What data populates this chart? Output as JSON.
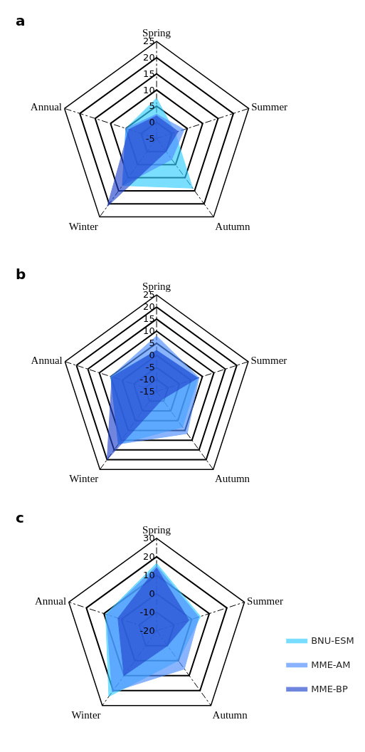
{
  "chart_data": [
    {
      "type": "radar",
      "title": "a",
      "categories": [
        "Spring",
        "Summer",
        "Autumn",
        "Winter",
        "Annual"
      ],
      "ylim": [
        -5,
        25
      ],
      "yticks": [
        -5,
        0,
        5,
        10,
        15,
        20,
        25
      ],
      "legend": false,
      "series": [
        {
          "color": "#33ccff",
          "values": [
            7.5,
            1,
            14,
            13,
            5
          ]
        },
        {
          "color": "#4d8cff",
          "values": [
            2.5,
            4,
            3,
            13,
            5
          ]
        },
        {
          "color": "#2244cc",
          "values": [
            2,
            2,
            0,
            21,
            4
          ]
        }
      ]
    },
    {
      "type": "radar",
      "title": "b",
      "categories": [
        "Spring",
        "Summer",
        "Autumn",
        "Winter",
        "Annual"
      ],
      "ylim": [
        -15,
        25
      ],
      "yticks": [
        -15,
        -10,
        -5,
        0,
        5,
        10,
        15,
        20,
        25
      ],
      "legend": false,
      "series": [
        {
          "color": "#33ccff",
          "values": [
            2,
            3,
            3.3,
            12,
            5
          ]
        },
        {
          "color": "#4d8cff",
          "values": [
            8,
            3.5,
            6.6,
            12,
            5
          ]
        },
        {
          "color": "#2244cc",
          "values": [
            2,
            3,
            -11,
            20,
            4.5
          ]
        }
      ]
    },
    {
      "type": "radar",
      "title": "c",
      "categories": [
        "Spring",
        "Summer",
        "Autumn",
        "Winter",
        "Annual"
      ],
      "ylim": [
        -20,
        30
      ],
      "yticks": [
        -20,
        -10,
        0,
        10,
        20,
        30
      ],
      "legend": "bottom right",
      "series": [
        {
          "name": "BNU-ESM",
          "color": "#33ccff",
          "values": [
            16.5,
            5,
            0,
            24,
            9
          ]
        },
        {
          "name": "MME-AM",
          "color": "#4d8cff",
          "values": [
            15,
            4,
            5.6,
            21,
            8.5
          ]
        },
        {
          "name": "MME-BP",
          "color": "#2244cc",
          "values": [
            14,
            -1.6,
            -10,
            10,
            2
          ]
        }
      ]
    }
  ]
}
